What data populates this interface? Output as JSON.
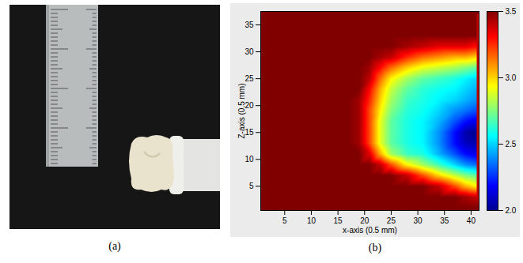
{
  "photo": {
    "panel_label": "(a)"
  },
  "chart_data": {
    "type": "heatmap",
    "panel_label": "(b)",
    "x_label": "x-axis (0.5 mm)",
    "y_label": "Z-axis (0.5 mm)",
    "xlim": [
      0.5,
      41.5
    ],
    "ylim": [
      0.5,
      37.5
    ],
    "xticks": [
      5,
      10,
      15,
      20,
      25,
      30,
      35,
      40
    ],
    "yticks": [
      5,
      10,
      15,
      20,
      25,
      30,
      35
    ],
    "x": [
      1,
      10,
      17,
      19,
      21,
      23,
      25,
      28,
      31,
      34,
      37,
      39,
      41
    ],
    "y": [
      1,
      3,
      5,
      7,
      9,
      11,
      13,
      15,
      17,
      19,
      21,
      23,
      25,
      27,
      29,
      31,
      33,
      37
    ],
    "values": [
      [
        3.5,
        3.5,
        3.5,
        3.5,
        3.5,
        3.5,
        3.5,
        3.5,
        3.5,
        3.5,
        3.5,
        3.5,
        3.5
      ],
      [
        3.5,
        3.5,
        3.5,
        3.5,
        3.5,
        3.5,
        3.5,
        3.5,
        3.5,
        3.5,
        3.5,
        3.45,
        3.4
      ],
      [
        3.5,
        3.5,
        3.5,
        3.5,
        3.5,
        3.5,
        3.5,
        3.5,
        3.5,
        3.4,
        3.2,
        3.05,
        2.95
      ],
      [
        3.5,
        3.5,
        3.5,
        3.5,
        3.5,
        3.5,
        3.5,
        3.4,
        3.2,
        3.0,
        2.85,
        2.75,
        2.7
      ],
      [
        3.5,
        3.5,
        3.5,
        3.5,
        3.5,
        3.4,
        3.2,
        2.95,
        2.8,
        2.65,
        2.5,
        2.4,
        2.35
      ],
      [
        3.5,
        3.5,
        3.5,
        3.5,
        3.35,
        3.05,
        2.8,
        2.65,
        2.6,
        2.45,
        2.3,
        2.2,
        2.15
      ],
      [
        3.5,
        3.5,
        3.5,
        3.45,
        3.2,
        2.9,
        2.7,
        2.6,
        2.55,
        2.4,
        2.2,
        2.08,
        2.05
      ],
      [
        3.5,
        3.5,
        3.5,
        3.45,
        3.2,
        2.9,
        2.7,
        2.6,
        2.55,
        2.4,
        2.2,
        2.05,
        2.0
      ],
      [
        3.5,
        3.5,
        3.5,
        3.45,
        3.2,
        2.9,
        2.7,
        2.6,
        2.55,
        2.45,
        2.3,
        2.2,
        2.15
      ],
      [
        3.5,
        3.5,
        3.5,
        3.45,
        3.2,
        2.95,
        2.75,
        2.62,
        2.58,
        2.5,
        2.4,
        2.35,
        2.3
      ],
      [
        3.5,
        3.5,
        3.5,
        3.45,
        3.25,
        3.0,
        2.8,
        2.65,
        2.6,
        2.55,
        2.5,
        2.45,
        2.4
      ],
      [
        3.5,
        3.5,
        3.5,
        3.5,
        3.3,
        3.05,
        2.85,
        2.7,
        2.62,
        2.58,
        2.55,
        2.5,
        2.45
      ],
      [
        3.5,
        3.5,
        3.5,
        3.5,
        3.4,
        3.15,
        2.95,
        2.8,
        2.7,
        2.65,
        2.6,
        2.55,
        2.5
      ],
      [
        3.5,
        3.5,
        3.5,
        3.5,
        3.45,
        3.3,
        3.15,
        3.0,
        2.9,
        2.85,
        2.8,
        2.75,
        2.7
      ],
      [
        3.5,
        3.5,
        3.5,
        3.5,
        3.5,
        3.45,
        3.4,
        3.25,
        3.15,
        3.1,
        3.05,
        3.05,
        3.0
      ],
      [
        3.5,
        3.5,
        3.5,
        3.5,
        3.5,
        3.5,
        3.5,
        3.45,
        3.4,
        3.35,
        3.35,
        3.35,
        3.3
      ],
      [
        3.5,
        3.5,
        3.5,
        3.5,
        3.5,
        3.5,
        3.5,
        3.5,
        3.5,
        3.5,
        3.5,
        3.5,
        3.5
      ],
      [
        3.5,
        3.5,
        3.5,
        3.5,
        3.5,
        3.5,
        3.5,
        3.5,
        3.5,
        3.5,
        3.5,
        3.5,
        3.5
      ]
    ],
    "colorbar": {
      "range": [
        2,
        3.5
      ],
      "ticks": [
        2,
        2.5,
        3,
        3.5
      ]
    }
  }
}
